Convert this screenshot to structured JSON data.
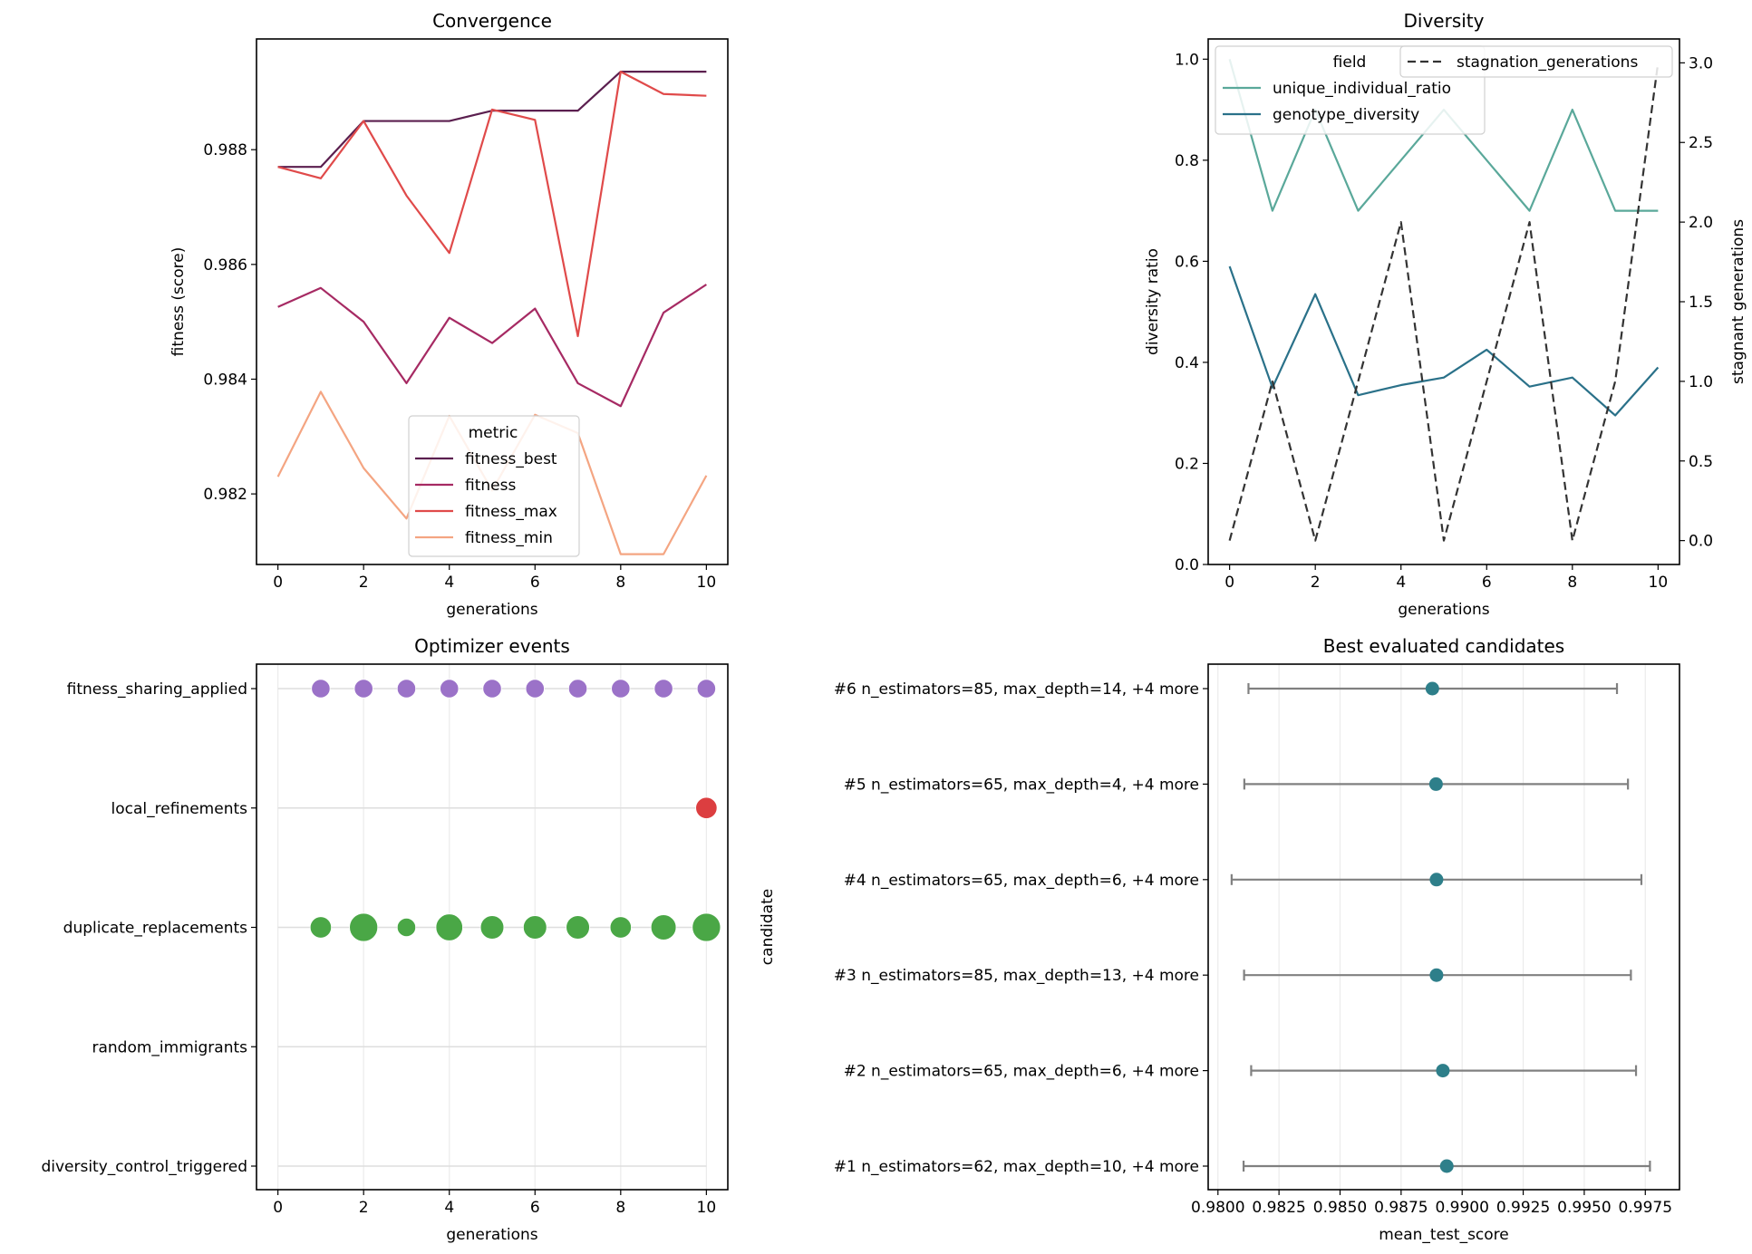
{
  "chart_data": [
    {
      "type": "line",
      "title": "Convergence",
      "xlabel": "generations",
      "ylabel": "fitness (score)",
      "x": [
        0,
        1,
        2,
        3,
        4,
        5,
        6,
        7,
        8,
        9,
        10
      ],
      "xlim": [
        -0.5,
        10.5
      ],
      "ylim": [
        0.98077,
        0.98993
      ],
      "xticks": [
        0,
        2,
        4,
        6,
        8,
        10
      ],
      "yticks": [
        0.982,
        0.984,
        0.986,
        0.988
      ],
      "ytick_labels": [
        "0.982",
        "0.984",
        "0.986",
        "0.988"
      ],
      "legend": {
        "title": "metric",
        "placement": "lower center"
      },
      "series": [
        {
          "name": "fitness_best",
          "color": "#5b1f4f",
          "values": [
            0.9877,
            0.9877,
            0.9885,
            0.9885,
            0.9885,
            0.98868,
            0.98868,
            0.98868,
            0.98936,
            0.98936,
            0.98936
          ]
        },
        {
          "name": "fitness",
          "color": "#a62a63",
          "values": [
            0.98526,
            0.98559,
            0.985,
            0.98393,
            0.98507,
            0.98463,
            0.98523,
            0.98393,
            0.98353,
            0.98516,
            0.98565
          ]
        },
        {
          "name": "fitness_max",
          "color": "#e04a4a",
          "values": [
            0.9877,
            0.9875,
            0.9885,
            0.9872,
            0.9862,
            0.9887,
            0.98852,
            0.98475,
            0.98936,
            0.98897,
            0.98894
          ]
        },
        {
          "name": "fitness_min",
          "color": "#f4a582",
          "values": [
            0.9823,
            0.98378,
            0.98245,
            0.98157,
            0.98336,
            0.98206,
            0.98338,
            0.98306,
            0.98095,
            0.98095,
            0.98232
          ]
        }
      ]
    },
    {
      "type": "line",
      "title": "Diversity",
      "xlabel": "generations",
      "ylabel": "diversity ratio",
      "ylabel_right": "stagnant generations",
      "x": [
        0,
        1,
        2,
        3,
        4,
        5,
        6,
        7,
        8,
        9,
        10
      ],
      "xlim": [
        -0.5,
        10.5
      ],
      "ylim": [
        0.0,
        1.04
      ],
      "ylim_right": [
        -0.15,
        3.15
      ],
      "xticks": [
        0,
        2,
        4,
        6,
        8,
        10
      ],
      "yticks": [
        0.0,
        0.2,
        0.4,
        0.6,
        0.8,
        1.0
      ],
      "ytick_labels": [
        "0.0",
        "0.2",
        "0.4",
        "0.6",
        "0.8",
        "1.0"
      ],
      "yticks_right": [
        0.0,
        0.5,
        1.0,
        1.5,
        2.0,
        2.5,
        3.0
      ],
      "ytick_labels_right": [
        "0.0",
        "0.5",
        "1.0",
        "1.5",
        "2.0",
        "2.5",
        "3.0"
      ],
      "legend": {
        "title": "field",
        "placement": "top-left"
      },
      "legend_right": {
        "placement": "top-right"
      },
      "series": [
        {
          "name": "unique_individual_ratio",
          "axis": "left",
          "color": "#5aa89a",
          "values": [
            1.0,
            0.7,
            0.9,
            0.7,
            0.8,
            0.9,
            0.8,
            0.7,
            0.9,
            0.7,
            0.7
          ]
        },
        {
          "name": "genotype_diversity",
          "axis": "left",
          "color": "#2a7189",
          "values": [
            0.59,
            0.35,
            0.535,
            0.335,
            0.355,
            0.37,
            0.425,
            0.352,
            0.37,
            0.295,
            0.39
          ]
        },
        {
          "name": "stagnation_generations",
          "axis": "right",
          "color": "#333333",
          "dashed": true,
          "values": [
            0,
            1,
            0,
            1,
            2,
            0,
            1,
            2,
            0,
            1,
            3
          ]
        }
      ]
    },
    {
      "type": "scatter",
      "title": "Optimizer events",
      "xlabel": "generations",
      "xlim": [
        -0.5,
        10.5
      ],
      "xticks": [
        0,
        2,
        4,
        6,
        8,
        10
      ],
      "categories": [
        "fitness_sharing_applied",
        "local_refinements",
        "duplicate_replacements",
        "random_immigrants",
        "diversity_control_triggered"
      ],
      "series": [
        {
          "name": "fitness_sharing_applied",
          "color": "#9b72c8",
          "points": [
            [
              1,
              1
            ],
            [
              2,
              1
            ],
            [
              3,
              1
            ],
            [
              4,
              1
            ],
            [
              5,
              1
            ],
            [
              6,
              1
            ],
            [
              7,
              1
            ],
            [
              8,
              1
            ],
            [
              9,
              1
            ],
            [
              10,
              1
            ]
          ]
        },
        {
          "name": "local_refinements",
          "color": "#dc3e40",
          "points": [
            [
              10,
              2
            ]
          ]
        },
        {
          "name": "duplicate_replacements",
          "color": "#4aa746",
          "points": [
            [
              1,
              2
            ],
            [
              2,
              6
            ],
            [
              3,
              1
            ],
            [
              4,
              5
            ],
            [
              5,
              3
            ],
            [
              6,
              3
            ],
            [
              7,
              3
            ],
            [
              8,
              2
            ],
            [
              9,
              4
            ],
            [
              10,
              6
            ]
          ]
        },
        {
          "name": "random_immigrants",
          "color": "#4aa746",
          "points": []
        },
        {
          "name": "diversity_control_triggered",
          "color": "#4aa746",
          "points": []
        }
      ]
    },
    {
      "type": "scatter",
      "title": "Best evaluated candidates",
      "xlabel": "mean_test_score",
      "ylabel": "candidate",
      "xlim": [
        0.9796,
        0.9989
      ],
      "xticks": [
        0.98,
        0.9825,
        0.985,
        0.9875,
        0.99,
        0.9925,
        0.995,
        0.9975
      ],
      "xtick_labels": [
        "0.9800",
        "0.9825",
        "0.9850",
        "0.9875",
        "0.9900",
        "0.9925",
        "0.9950",
        "0.9975"
      ],
      "color": "#2e7f8a",
      "error_color": "#808080",
      "candidates": [
        {
          "label": "#6 n_estimators=85, max_depth=14, +4 more",
          "mean": 0.98878,
          "low": 0.98125,
          "high": 0.99634
        },
        {
          "label": "#5 n_estimators=65, max_depth=4, +4 more",
          "mean": 0.98893,
          "low": 0.98108,
          "high": 0.99679
        },
        {
          "label": "#4 n_estimators=65, max_depth=6, +4 more",
          "mean": 0.98895,
          "low": 0.98056,
          "high": 0.99734
        },
        {
          "label": "#3 n_estimators=85, max_depth=13, +4 more",
          "mean": 0.98895,
          "low": 0.98107,
          "high": 0.99691
        },
        {
          "label": "#2 n_estimators=65, max_depth=6, +4 more",
          "mean": 0.98921,
          "low": 0.98136,
          "high": 0.99712
        },
        {
          "label": "#1 n_estimators=62, max_depth=10, +4 more",
          "mean": 0.98937,
          "low": 0.98105,
          "high": 0.99769
        }
      ]
    }
  ]
}
